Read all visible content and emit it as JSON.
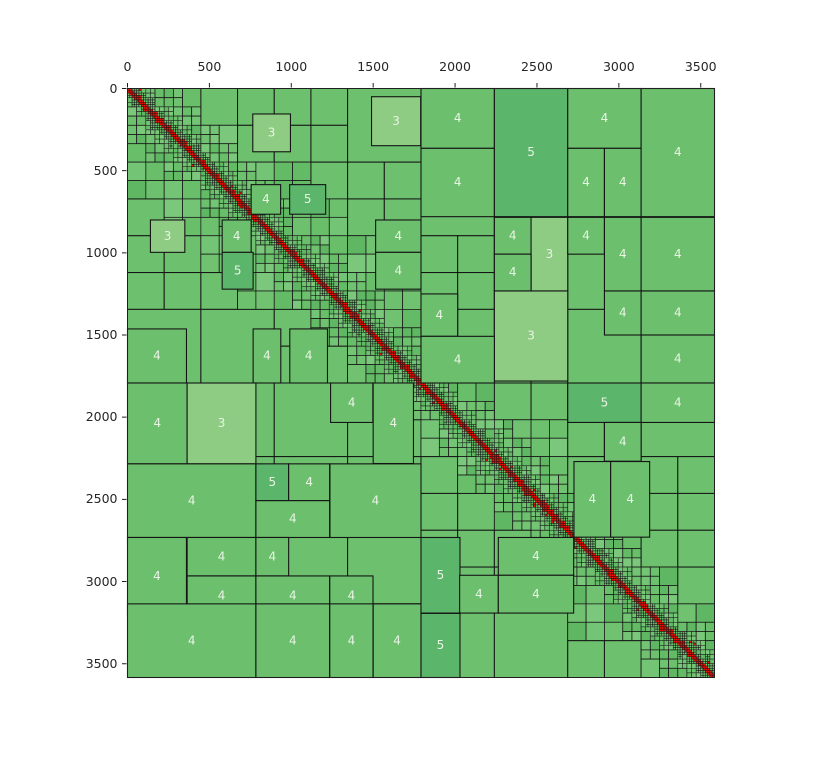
{
  "figure": {
    "title": "",
    "description": "Hierarchical matrix (H-matrix) block partition plot: admissible low-rank blocks in green labeled with their rank, dense full blocks in red clustered along the main diagonal"
  },
  "chart_data": {
    "type": "heatmap",
    "subtype": "hierarchical-matrix-block-partition",
    "title": "",
    "xlabel": "",
    "ylabel": "",
    "matrix_size": 3584,
    "x_axis": {
      "position": "top",
      "range": [
        0,
        3584
      ],
      "ticks": [
        0,
        500,
        1000,
        1500,
        2000,
        2500,
        3000,
        3500
      ]
    },
    "y_axis": {
      "position": "left",
      "range": [
        0,
        3584
      ],
      "ticks": [
        0,
        500,
        1000,
        1500,
        2000,
        2500,
        3000,
        3500
      ],
      "inverted": true
    },
    "grid": false,
    "legend": "none",
    "colors": {
      "rank3": "#8ecb83",
      "rank4": "#6cc06d",
      "rank5": "#5bb56a",
      "cell_green": "#6dc16e",
      "dense_red": "#ef0f05",
      "line": "#141414",
      "spine": "#1f1f1f",
      "tick_text": "#262626",
      "block_label_text": "#e8f3e4",
      "background": "#ffffff"
    },
    "dense_diagonal": {
      "description": "irregular clusters of small dense (red) leaf blocks along the main diagonal with scattered near-diagonal outliers",
      "leaf_size": 14,
      "seed": 20
    },
    "block_format": [
      "col_start",
      "row_start",
      "width",
      "height",
      "rank"
    ],
    "labeled_blocks": [
      [
        765,
        155,
        230,
        230,
        3
      ],
      [
        1490,
        50,
        300,
        298,
        3
      ],
      [
        755,
        585,
        180,
        180,
        4
      ],
      [
        990,
        585,
        220,
        180,
        5
      ],
      [
        140,
        800,
        210,
        197,
        3
      ],
      [
        578,
        800,
        177,
        197,
        4
      ],
      [
        578,
        997,
        189,
        224,
        5
      ],
      [
        1515,
        800,
        277,
        197,
        4
      ],
      [
        1515,
        997,
        277,
        224,
        4
      ],
      [
        0,
        1463,
        360,
        329,
        4
      ],
      [
        767,
        1463,
        169,
        329,
        4
      ],
      [
        991,
        1463,
        230,
        329,
        4
      ],
      [
        1792,
        0,
        448,
        364,
        4
      ],
      [
        1792,
        364,
        448,
        416,
        4
      ],
      [
        2240,
        0,
        448,
        780,
        5
      ],
      [
        2688,
        0,
        448,
        364,
        4
      ],
      [
        2688,
        364,
        224,
        416,
        4
      ],
      [
        2912,
        364,
        224,
        416,
        4
      ],
      [
        3136,
        0,
        448,
        780,
        4
      ],
      [
        2240,
        784,
        224,
        224,
        4
      ],
      [
        2464,
        784,
        224,
        448,
        3
      ],
      [
        2240,
        1008,
        224,
        224,
        4
      ],
      [
        2688,
        784,
        224,
        224,
        4
      ],
      [
        2912,
        784,
        224,
        448,
        4
      ],
      [
        3136,
        784,
        448,
        448,
        4
      ],
      [
        1792,
        1250,
        224,
        258,
        4
      ],
      [
        2240,
        1232,
        448,
        548,
        3
      ],
      [
        2912,
        1232,
        224,
        268,
        4
      ],
      [
        3136,
        1232,
        448,
        268,
        4
      ],
      [
        1792,
        1508,
        448,
        284,
        4
      ],
      [
        3136,
        1500,
        448,
        292,
        4
      ],
      [
        0,
        1792,
        364,
        492,
        4
      ],
      [
        364,
        1792,
        420,
        492,
        3
      ],
      [
        1240,
        1792,
        258,
        240,
        4
      ],
      [
        1500,
        1792,
        246,
        490,
        4
      ],
      [
        0,
        2284,
        784,
        448,
        4
      ],
      [
        784,
        2284,
        200,
        224,
        5
      ],
      [
        984,
        2284,
        250,
        224,
        4
      ],
      [
        784,
        2508,
        450,
        224,
        4
      ],
      [
        1236,
        2284,
        556,
        448,
        4
      ],
      [
        0,
        2732,
        360,
        472,
        4
      ],
      [
        364,
        2732,
        420,
        234,
        4
      ],
      [
        364,
        2966,
        420,
        240,
        4
      ],
      [
        784,
        2732,
        200,
        234,
        4
      ],
      [
        784,
        2966,
        450,
        240,
        4
      ],
      [
        1235,
        2966,
        264,
        240,
        4
      ],
      [
        0,
        3136,
        784,
        448,
        4
      ],
      [
        784,
        3136,
        450,
        448,
        4
      ],
      [
        1235,
        3136,
        264,
        448,
        4
      ],
      [
        1500,
        3136,
        292,
        448,
        4
      ],
      [
        2688,
        1792,
        448,
        240,
        5
      ],
      [
        3136,
        1792,
        448,
        240,
        4
      ],
      [
        2912,
        2032,
        224,
        236,
        4
      ],
      [
        2726,
        2270,
        224,
        460,
        4
      ],
      [
        2950,
        2270,
        238,
        460,
        4
      ],
      [
        1792,
        2732,
        238,
        460,
        5
      ],
      [
        2264,
        2732,
        460,
        230,
        4
      ],
      [
        2028,
        2962,
        236,
        230,
        4
      ],
      [
        2264,
        2962,
        460,
        230,
        4
      ],
      [
        1792,
        3194,
        238,
        390,
        5
      ]
    ]
  }
}
